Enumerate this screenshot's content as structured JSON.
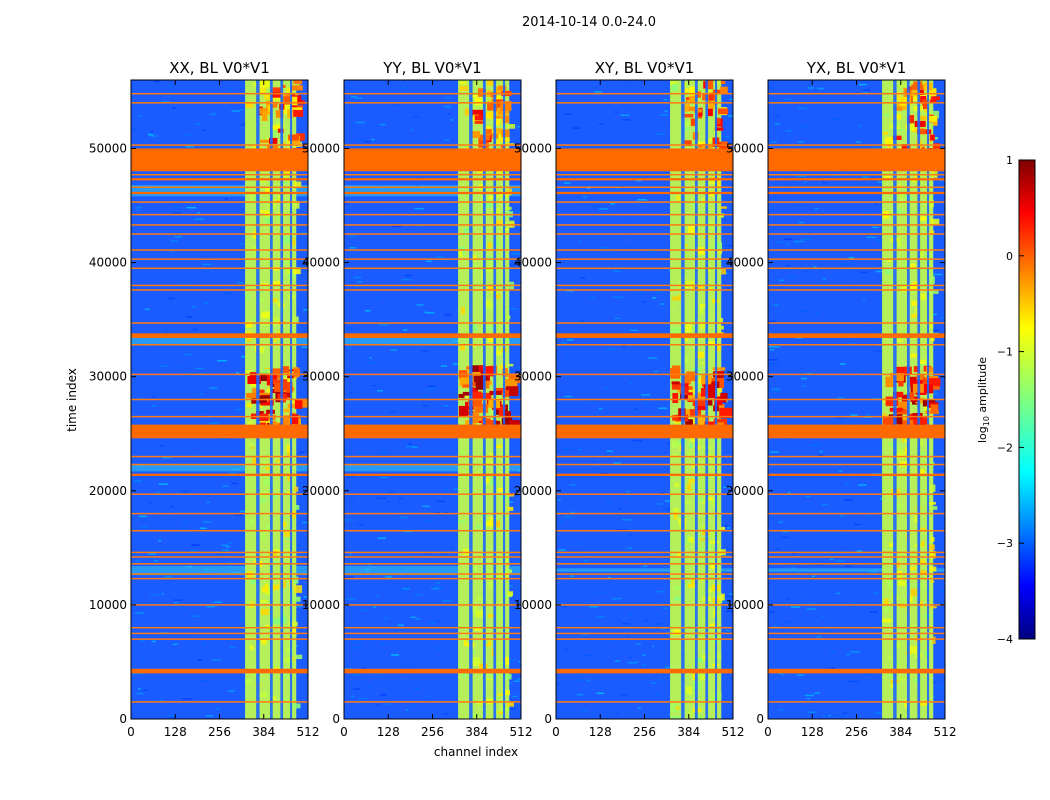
{
  "suptitle": "2014-10-14 0.0-24.0",
  "chart_data": {
    "type": "heatmap",
    "xlabel": "channel index",
    "ylabel": "time index",
    "x_range": [
      0,
      512
    ],
    "y_range": [
      0,
      56000
    ],
    "x_ticks": [
      "0",
      "128",
      "256",
      "384",
      "512"
    ],
    "y_ticks": [
      "0",
      "10000",
      "20000",
      "30000",
      "40000",
      "50000"
    ],
    "panels": [
      {
        "title": "XX, BL V0*V1",
        "polarization": "XX"
      },
      {
        "title": "YY, BL V0*V1",
        "polarization": "YY"
      },
      {
        "title": "XY, BL V0*V1",
        "polarization": "XY"
      },
      {
        "title": "YX, BL V0*V1",
        "polarization": "YX"
      }
    ],
    "colorbar": {
      "label": "log10 amplitude",
      "label_main": "log",
      "label_sub": "10",
      "label_rest": " amplitude",
      "range": [
        -4,
        1
      ],
      "ticks": [
        "1",
        "0",
        "−1",
        "−2",
        "−3",
        "−4"
      ],
      "colormap": "jet"
    },
    "flagged_time_bands": [
      {
        "from": 48000,
        "to": 50000
      },
      {
        "from": 24600,
        "to": 25800
      },
      {
        "from": 33400,
        "to": 33800
      },
      {
        "from": 4000,
        "to": 4400
      },
      {
        "from": 21300,
        "to": 21500
      },
      {
        "from": 46000,
        "to": 46200
      },
      {
        "from": 47200,
        "to": 47400
      }
    ],
    "flagged_time_lines": [
      1500,
      7000,
      7500,
      8000,
      10000,
      12300,
      12700,
      13600,
      14200,
      14600,
      16500,
      18000,
      19700,
      22300,
      23000,
      26500,
      28000,
      30200,
      32800,
      34700,
      37600,
      38000,
      39500,
      40300,
      41100,
      42500,
      43300,
      44200,
      45300,
      46600,
      47700,
      50300,
      54000,
      54800
    ],
    "rfi_channel_band": [
      330,
      478
    ],
    "rfi_channel_gaps": [
      [
        362,
        372
      ],
      [
        402,
        410
      ],
      [
        432,
        440
      ],
      [
        460,
        466
      ]
    ],
    "strong_rfi_time_range": [
      25500,
      31000
    ],
    "late_rfi_time_range": [
      50000,
      56000
    ]
  }
}
